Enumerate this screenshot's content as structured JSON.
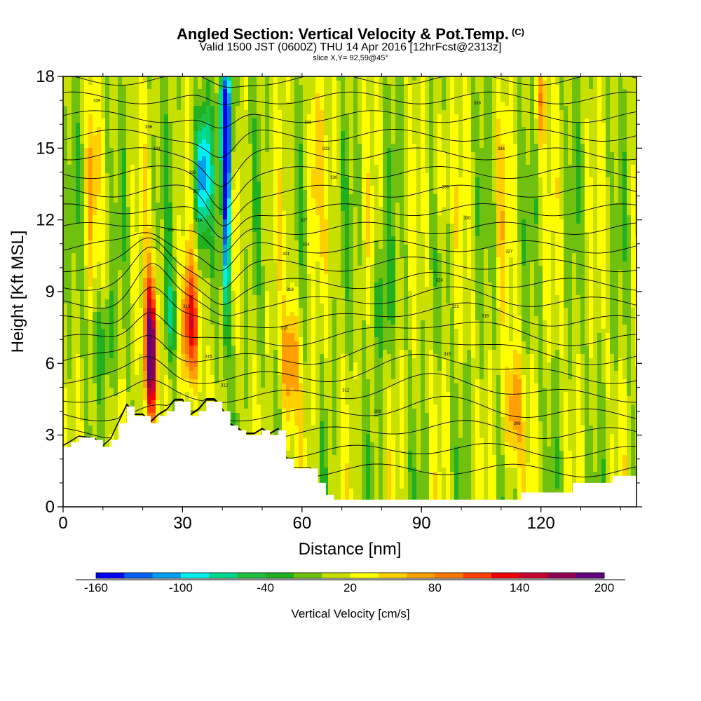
{
  "title": {
    "main": "Angled Section: Vertical Velocity & Pot.Temp.",
    "copyright": "(C)",
    "valid": "Valid 1500 JST (0600Z) THU 14 Apr 2016 [12hrFcst@2313z]",
    "slice": "slice X,Y= 92,59@45°"
  },
  "chart_data": {
    "type": "heatmap",
    "xlabel": "Distance [nm]",
    "ylabel": "Height [Kft MSL]",
    "xlim": [
      0,
      144
    ],
    "ylim": [
      0,
      18
    ],
    "x_ticks": [
      "0",
      "30",
      "60",
      "90",
      "120"
    ],
    "y_ticks": [
      "0",
      "3",
      "6",
      "9",
      "12",
      "15",
      "18"
    ],
    "colorbar": {
      "label": "Vertical Velocity [cm/s]",
      "tick_labels": [
        "-160",
        "-100",
        "-40",
        "20",
        "80",
        "140",
        "200"
      ],
      "levels": [
        -160,
        -140,
        -120,
        -100,
        -80,
        -60,
        -40,
        -20,
        0,
        20,
        40,
        60,
        80,
        100,
        120,
        140,
        160,
        180,
        200
      ],
      "colors": [
        "#0000f0",
        "#0060f0",
        "#00a0f0",
        "#00f0f0",
        "#00d890",
        "#20c040",
        "#20b020",
        "#70c010",
        "#c8e000",
        "#ffff00",
        "#ffd000",
        "#ffa000",
        "#ff7800",
        "#ff4000",
        "#f00000",
        "#c80030",
        "#900050",
        "#600080"
      ]
    },
    "terrain_kft": {
      "x": [
        0,
        2,
        4,
        8,
        10,
        12,
        14,
        16,
        18,
        20,
        22,
        24,
        26,
        28,
        30,
        32,
        34,
        36,
        38,
        40,
        42,
        44,
        46,
        48,
        50,
        52,
        54,
        56,
        58,
        60,
        62,
        64,
        66,
        68,
        70,
        80,
        90,
        100,
        110,
        113,
        115,
        120,
        125,
        128,
        130,
        135,
        138,
        144
      ],
      "h": [
        2.5,
        2.7,
        2.9,
        2.8,
        2.5,
        2.8,
        3.5,
        4.2,
        3.8,
        3.8,
        3.5,
        3.8,
        4.0,
        4.4,
        4.4,
        3.8,
        4.0,
        4.4,
        4.4,
        4.0,
        3.4,
        3.2,
        3.0,
        3.0,
        3.2,
        3.0,
        3.2,
        2.0,
        1.6,
        1.6,
        1.6,
        1.0,
        0.5,
        0.3,
        0.3,
        0.3,
        0.3,
        0.3,
        0.3,
        0.3,
        0.6,
        0.6,
        0.6,
        1.0,
        1.0,
        1.0,
        1.3,
        1.3
      ]
    },
    "vertical_velocity_features": [
      {
        "x": 22,
        "z": 6.5,
        "value": 200
      },
      {
        "x": 32,
        "z": 7.5,
        "value": 120
      },
      {
        "x": 41,
        "z": 16.0,
        "value": -160
      },
      {
        "x": 35,
        "z": 14.0,
        "value": -120
      },
      {
        "x": 57,
        "z": 6.0,
        "value": 80
      },
      {
        "x": 113,
        "z": 4.0,
        "value": 80
      },
      {
        "x": 95,
        "z": 14.0,
        "value": 40
      },
      {
        "x": 80,
        "z": 8.5,
        "value": -40
      }
    ],
    "theta_contour_labels": [
      {
        "x": 8.5,
        "z": 17.0,
        "text": "339"
      },
      {
        "x": 21.5,
        "z": 15.9,
        "text": "336"
      },
      {
        "x": 23.5,
        "z": 15.0,
        "text": "333"
      },
      {
        "x": 32.5,
        "z": 14.0,
        "text": "330"
      },
      {
        "x": 33.5,
        "z": 13.2,
        "text": "327"
      },
      {
        "x": 34.0,
        "z": 12.0,
        "text": "324"
      },
      {
        "x": 27.0,
        "z": 11.6,
        "text": "321"
      },
      {
        "x": 31.0,
        "z": 8.4,
        "text": "318"
      },
      {
        "x": 36.5,
        "z": 6.3,
        "text": "315"
      },
      {
        "x": 40.5,
        "z": 5.1,
        "text": "312"
      },
      {
        "x": 61.5,
        "z": 16.1,
        "text": "336"
      },
      {
        "x": 66.0,
        "z": 15.0,
        "text": "333"
      },
      {
        "x": 68.0,
        "z": 13.8,
        "text": "330"
      },
      {
        "x": 60.5,
        "z": 12.0,
        "text": "327"
      },
      {
        "x": 61.0,
        "z": 11.0,
        "text": "324"
      },
      {
        "x": 56.0,
        "z": 10.6,
        "text": "321"
      },
      {
        "x": 57.0,
        "z": 9.1,
        "text": "318"
      },
      {
        "x": 55.5,
        "z": 7.5,
        "text": "315"
      },
      {
        "x": 71.0,
        "z": 4.9,
        "text": "312"
      },
      {
        "x": 79.0,
        "z": 4.0,
        "text": "309"
      },
      {
        "x": 104.0,
        "z": 16.9,
        "text": "339"
      },
      {
        "x": 110.0,
        "z": 15.0,
        "text": "336"
      },
      {
        "x": 96.0,
        "z": 13.4,
        "text": "333"
      },
      {
        "x": 101.5,
        "z": 12.1,
        "text": "330"
      },
      {
        "x": 112.0,
        "z": 10.7,
        "text": "327"
      },
      {
        "x": 94.5,
        "z": 9.5,
        "text": "324"
      },
      {
        "x": 98.5,
        "z": 8.4,
        "text": "321"
      },
      {
        "x": 106.0,
        "z": 8.0,
        "text": "318"
      },
      {
        "x": 96.5,
        "z": 6.4,
        "text": "315"
      },
      {
        "x": 114.0,
        "z": 3.5,
        "text": "306"
      }
    ],
    "grid": false
  }
}
